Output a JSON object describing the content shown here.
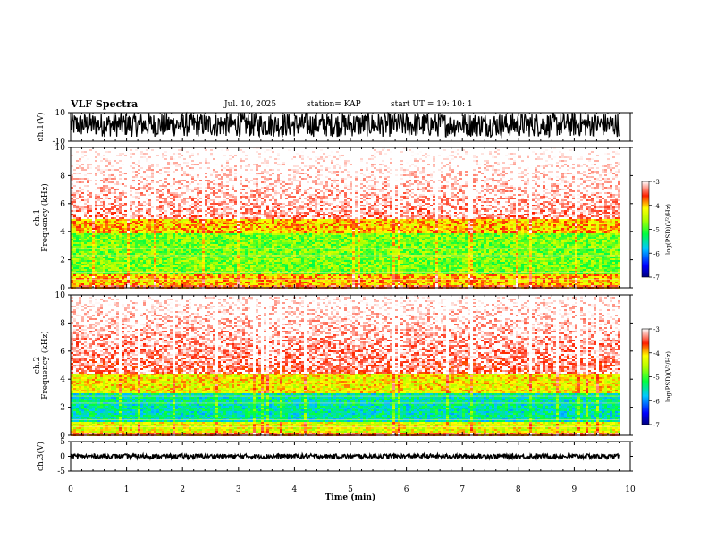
{
  "header": {
    "title": "VLF Spectra",
    "date": "Jul. 10, 2025",
    "station": "station= KAP",
    "start": "start  UT  =    19: 10: 1"
  },
  "chart_data": [
    {
      "type": "line",
      "name": "ch1-waveform",
      "ylabel": "ch.1(V)",
      "ylim": [
        -10,
        10
      ],
      "yticks": [
        "10",
        "-10"
      ],
      "xlim": [
        0,
        9.8
      ],
      "description_values": {
        "typical_min": -7,
        "typical_max": 10
      }
    },
    {
      "type": "heatmap",
      "name": "ch1-spectrogram",
      "ylabel": "ch.1\nFrequency (kHz)",
      "ylim": [
        0,
        10
      ],
      "yticks": [
        "0",
        "2",
        "4",
        "6",
        "8",
        "10"
      ],
      "bands": [
        {
          "f0": 0.3,
          "f1": 1.0,
          "level": -4
        },
        {
          "f0": 1.0,
          "f1": 4.0,
          "level": -4.8
        },
        {
          "f0": 4.0,
          "f1": 5.0,
          "level": -4
        },
        {
          "f0": 5.0,
          "f1": 10,
          "level": -3.2
        }
      ],
      "colorbar": {
        "label": "log(PSD)(V²/Hz)",
        "ticks": [
          "-3",
          "-4",
          "-5",
          "-6",
          "-7"
        ],
        "range": [
          -7,
          -3
        ]
      }
    },
    {
      "type": "heatmap",
      "name": "ch2-spectrogram",
      "ylabel": "ch.2\nFrequency (kHz)",
      "ylim": [
        0,
        10
      ],
      "yticks": [
        "0",
        "2",
        "4",
        "6",
        "8",
        "10"
      ],
      "bands": [
        {
          "f0": 0.3,
          "f1": 1.0,
          "level": -4.3
        },
        {
          "f0": 1.0,
          "f1": 3.0,
          "level": -5.5
        },
        {
          "f0": 3.0,
          "f1": 4.5,
          "level": -4.2
        },
        {
          "f0": 4.5,
          "f1": 10,
          "level": -3.3
        }
      ],
      "colorbar": {
        "label": "log(PSD)(V²/Hz)",
        "ticks": [
          "-3",
          "-4",
          "-5",
          "-6",
          "-7"
        ],
        "range": [
          -7,
          -3
        ]
      }
    },
    {
      "type": "line",
      "name": "ch3-waveform",
      "ylabel": "ch.3(V)",
      "ylim": [
        -5,
        5
      ],
      "yticks": [
        "5",
        "0",
        "-5"
      ],
      "xlim": [
        0,
        9.8
      ],
      "description_values": {
        "min": -0.8,
        "max": 0.8
      }
    }
  ],
  "xaxis": {
    "label": "Time (min)",
    "ticks": [
      "0",
      "1",
      "2",
      "3",
      "4",
      "5",
      "6",
      "7",
      "8",
      "9",
      "10"
    ],
    "range": [
      0,
      10
    ]
  }
}
